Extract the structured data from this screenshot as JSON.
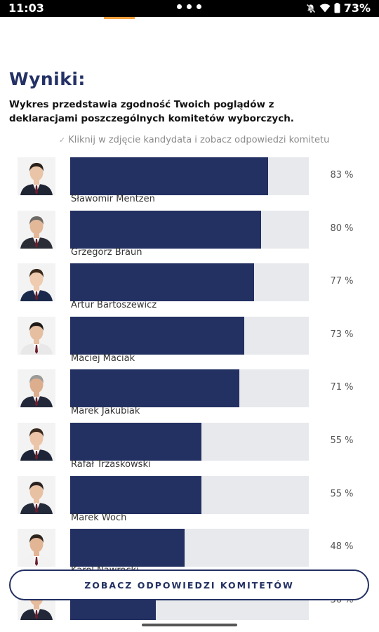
{
  "status_bar": {
    "time": "11:03",
    "battery": "73%"
  },
  "header": {
    "title": "Wyniki:",
    "subtitle": "Wykres przedstawia zgodność Twoich poglądów z deklaracjami poszczególnych komitetów wyborczych.",
    "hint": "Kliknij w zdjęcie kandydata i zobacz odpowiedzi komitetu"
  },
  "candidates": [
    {
      "name": "Sławomir Mentzen",
      "percent_label": "83 %",
      "score": 83,
      "photo": "candidate-photo"
    },
    {
      "name": "Grzegorz Braun",
      "percent_label": "80 %",
      "score": 80,
      "photo": "candidate-photo"
    },
    {
      "name": "Artur Bartoszewicz",
      "percent_label": "77 %",
      "score": 77,
      "photo": "candidate-photo"
    },
    {
      "name": "Maciej Maciak",
      "percent_label": "73 %",
      "score": 73,
      "photo": "candidate-photo"
    },
    {
      "name": "Marek Jakubiak",
      "percent_label": "71 %",
      "score": 71,
      "photo": "candidate-photo"
    },
    {
      "name": "Rafał Trzaskowski",
      "percent_label": "55 %",
      "score": 55,
      "photo": "candidate-photo"
    },
    {
      "name": "Marek Woch",
      "percent_label": "55 %",
      "score": 55,
      "photo": "candidate-photo"
    },
    {
      "name": "Karol Nawrocki",
      "percent_label": "48 %",
      "score": 48,
      "photo": "candidate-photo"
    },
    {
      "name": "",
      "percent_label": "36 %",
      "score": 36,
      "photo": "candidate-photo"
    }
  ],
  "cta": {
    "label": "ZOBACZ ODPOWIEDZI KOMITETÓW"
  },
  "colors": {
    "bar_fill": "#233062",
    "bar_track": "#e7e9ed",
    "title": "#243165",
    "accent": "#f2a03d"
  },
  "icons": [
    "mute-icon",
    "wifi-icon",
    "battery-icon",
    "check-icon",
    "avatar-photo"
  ]
}
